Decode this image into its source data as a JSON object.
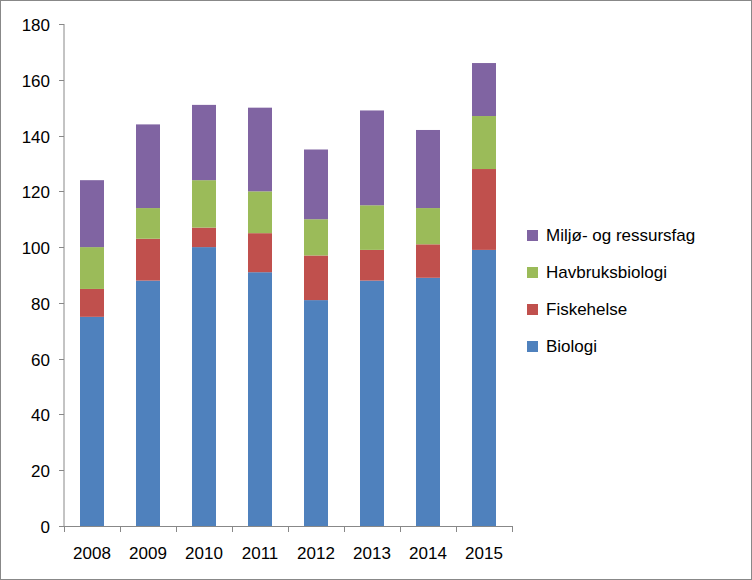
{
  "chart_data": {
    "type": "bar",
    "stacked": true,
    "grid": false,
    "legend": "right",
    "categories": [
      "2008",
      "2009",
      "2010",
      "2011",
      "2012",
      "2013",
      "2014",
      "2015"
    ],
    "series": [
      {
        "name": "Biologi",
        "color": "#4f81bd",
        "values": [
          75,
          88,
          100,
          91,
          81,
          88,
          89,
          99
        ]
      },
      {
        "name": "Fiskehelse",
        "color": "#c0504d",
        "values": [
          10,
          15,
          7,
          14,
          16,
          11,
          12,
          29
        ]
      },
      {
        "name": "Havbruksbiologi",
        "color": "#9bbb59",
        "values": [
          15,
          11,
          17,
          15,
          13,
          16,
          13,
          19
        ]
      },
      {
        "name": "Miljø- og ressursfag",
        "color": "#8064a2",
        "values": [
          24,
          30,
          27,
          30,
          25,
          34,
          28,
          19
        ]
      }
    ],
    "ylim": [
      0,
      180
    ],
    "yticks": [
      0,
      20,
      40,
      60,
      80,
      100,
      120,
      140,
      160,
      180
    ]
  }
}
